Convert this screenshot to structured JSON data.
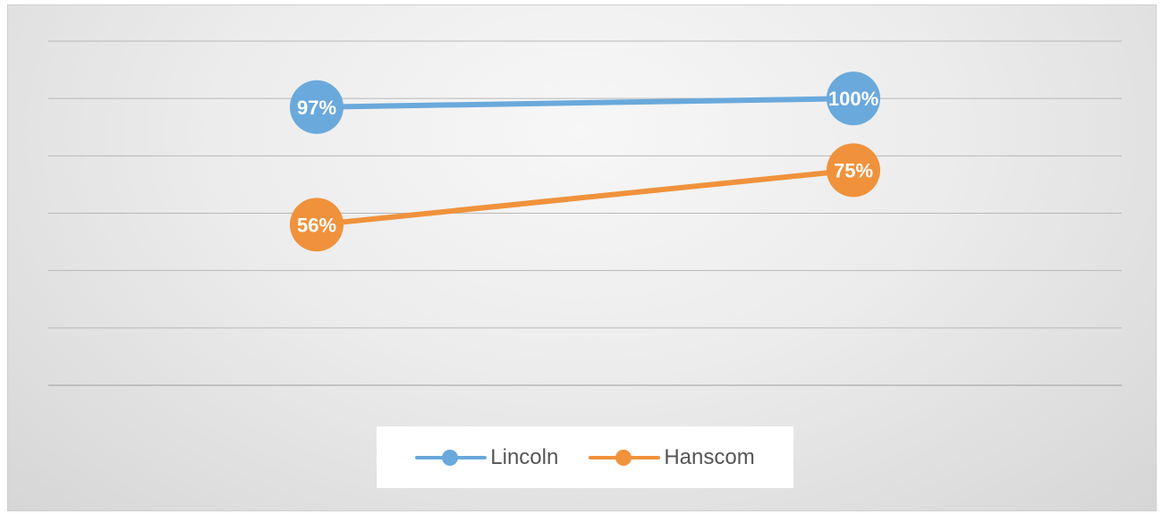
{
  "chart_data": {
    "type": "line",
    "categories": [
      "",
      ""
    ],
    "ylim": [
      0,
      120
    ],
    "y_gridlines": [
      0,
      20,
      40,
      60,
      80,
      100,
      120
    ],
    "grid": true,
    "legend_position": "bottom",
    "series": [
      {
        "name": "Lincoln",
        "values": [
          97,
          100
        ],
        "labels": [
          "97%",
          "100%"
        ],
        "color": "#6aa9dc"
      },
      {
        "name": "Hanscom",
        "values": [
          56,
          75
        ],
        "labels": [
          "56%",
          "75%"
        ],
        "color": "#f0923c"
      }
    ]
  }
}
